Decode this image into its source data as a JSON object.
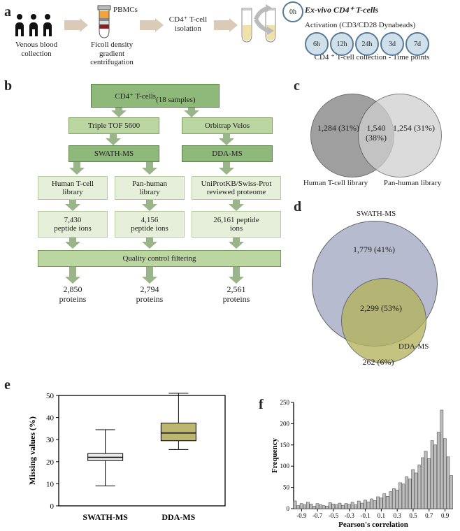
{
  "letters": {
    "a": "a",
    "b": "b",
    "c": "c",
    "d": "d",
    "e": "e",
    "f": "f"
  },
  "panelA": {
    "venous": "Venous blood\ncollection",
    "pbmc": "PBMCs",
    "ficoll": "Ficoll density\ngradient\ncentrifugation",
    "cd4iso": "CD4⁺ T-cell\nisolation",
    "exvivo": "Ex-vivo CD4⁺ T-cells",
    "activation": "Activation (CD3/CD28 Dynabeads)",
    "collection": "CD4 ⁺ T-cell collection - Time\npoints",
    "t0": "0h",
    "times": [
      "6h",
      "12h",
      "24h",
      "3d",
      "7d"
    ],
    "time_fill": "#cfe0ea",
    "time_border": "#567a97",
    "t0_fill": "#ffffff"
  },
  "panelB": {
    "top": {
      "l1": "CD4⁺ T-cells",
      "l2": "(18 samples)"
    },
    "tof": "Triple TOF 5600",
    "orbi": "Orbitrap Velos",
    "swath": "SWATH-MS",
    "dda": "DDA-MS",
    "lib1": "Human T-cell\nlibrary",
    "lib2": "Pan-human\nlibrary",
    "lib3": "UniProtKB/Swiss-Prot\nreviewed proteome",
    "ions1": "7,430\npeptide ions",
    "ions2": "4,156\npeptide ions",
    "ions3": "26,161 peptide\nions",
    "qc": "Quality control filtering",
    "prot1": "2,850\nproteins",
    "prot2": "2,794\nproteins",
    "prot3": "2,561\nproteins",
    "colors": {
      "dark": "#8fb97a",
      "darkBorder": "#5a7f48",
      "mid": "#bcd6a2",
      "midBorder": "#7a9a60",
      "light": "#e6efda",
      "lightBorder": "#b7cba0",
      "text": "#1c1c1c"
    },
    "arrow": "#9bb58a"
  },
  "panelC": {
    "leftLabel": "Human T-cell\nlibrary",
    "rightLabel": "Pan-human\nlibrary",
    "left": "1,284\n(31%)",
    "mid": "1,540\n(38%)",
    "right": "1,254\n(31%)",
    "fillL": "#8f8f8f",
    "fillR": "#cfcfcf"
  },
  "panelD": {
    "topLabel": "SWATH-MS",
    "bottomLabel": "DDA-MS",
    "top": "1,779\n(41%)",
    "mid": "2,299\n(53%)",
    "bot": "262\n(6%)",
    "bigFill": "#b0b4ca",
    "smallFill": "#b4b35c"
  },
  "panelE": {
    "ylabel": "Missing values (%)",
    "xlabels": [
      "SWATH-MS",
      "DDA-MS"
    ],
    "ylim": [
      0,
      50
    ],
    "yticks": [
      0,
      10,
      20,
      30,
      40,
      50
    ],
    "swath": {
      "min": 9,
      "q1": 20.5,
      "med": 22,
      "q3": 23.7,
      "max": 34.5,
      "fill": "#e9e9e9"
    },
    "dda": {
      "min": 25.5,
      "q1": 29.5,
      "med": 33,
      "q3": 37.5,
      "max": 51,
      "fill": "#bcb66e"
    }
  },
  "panelF": {
    "xlabel": "Pearson's correlation",
    "ylabel": "Frequency",
    "xlim": [
      -1,
      1
    ],
    "xticks": [
      -0.9,
      -0.7,
      -0.5,
      -0.3,
      -0.1,
      0.1,
      0.3,
      0.5,
      0.7,
      0.9
    ],
    "ylim": [
      0,
      250
    ],
    "yticks": [
      0,
      50,
      100,
      150,
      200,
      250
    ],
    "bar_fill": "#bdbdbd",
    "bar_border": "#555",
    "values": [
      18,
      7,
      12,
      9,
      15,
      11,
      6,
      12,
      9,
      7,
      6,
      14,
      11,
      9,
      13,
      8,
      12,
      10,
      15,
      9,
      18,
      13,
      20,
      16,
      23,
      19,
      28,
      25,
      35,
      29,
      40,
      47,
      44,
      61,
      58,
      75,
      70,
      92,
      84,
      103,
      120,
      135,
      118,
      160,
      150,
      180,
      232,
      165,
      122,
      78
    ]
  }
}
